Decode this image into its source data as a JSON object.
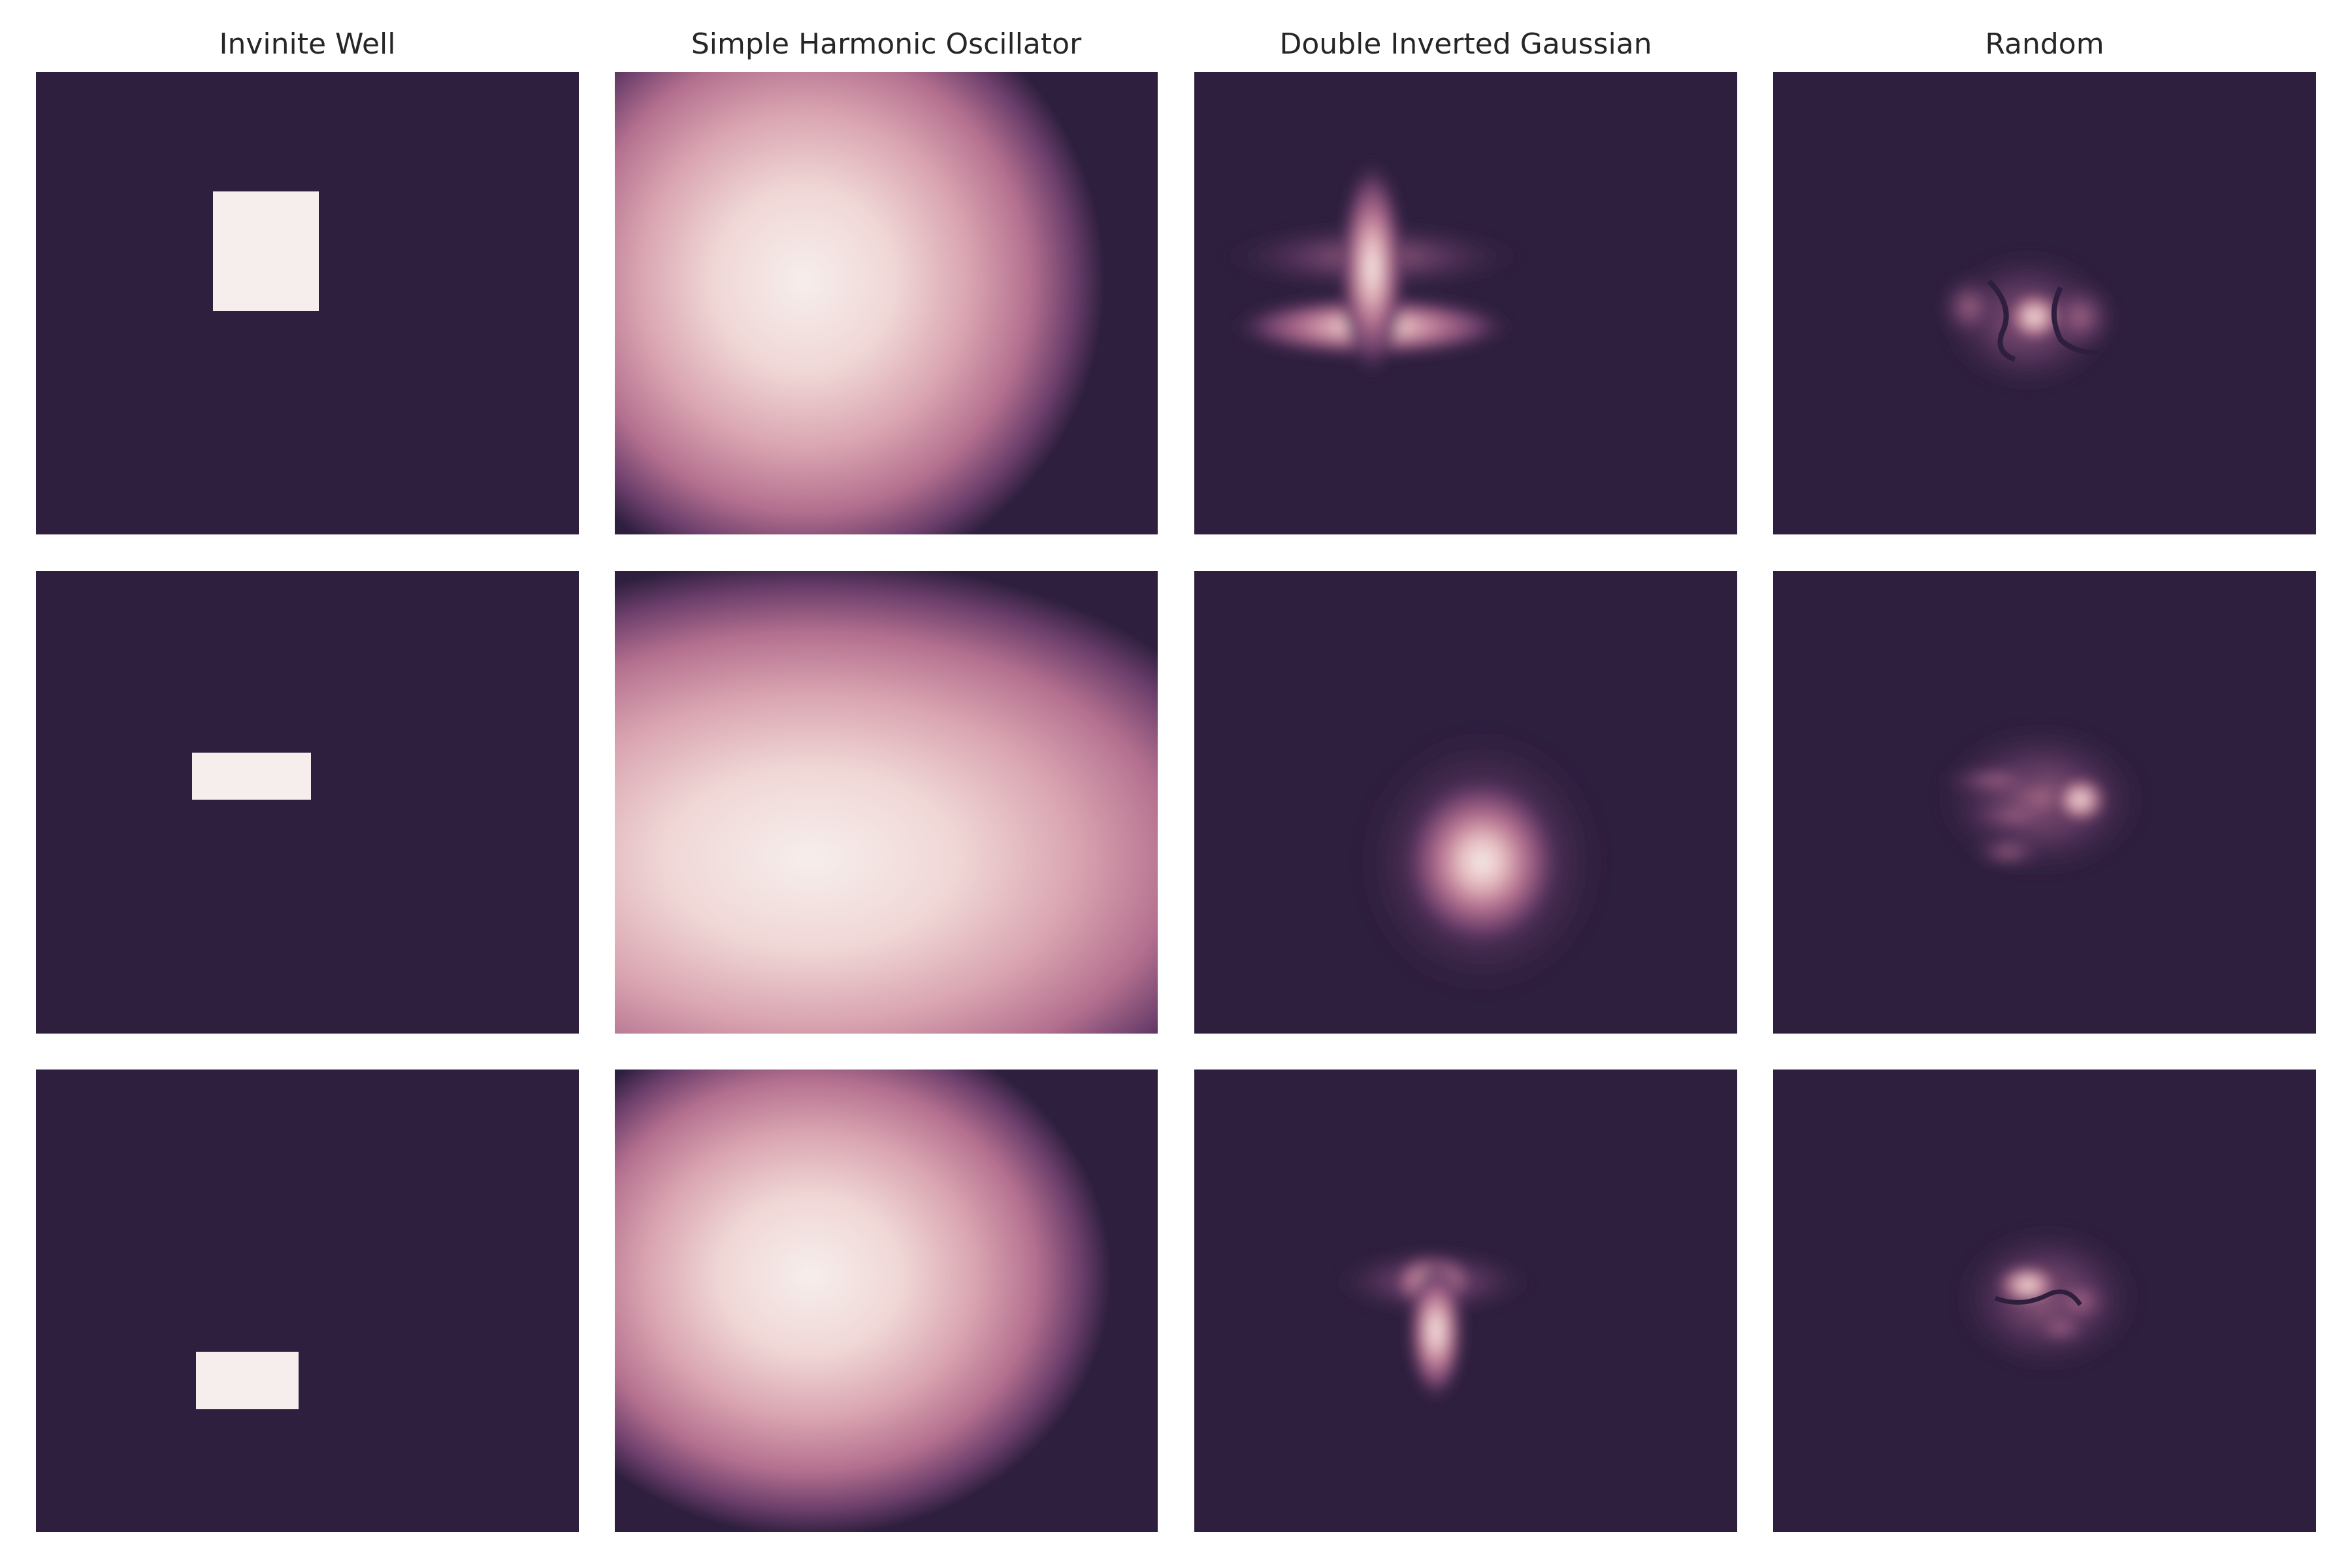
{
  "chart_data": {
    "type": "heatmap",
    "layout": "3 rows x 4 columns of 2D density images",
    "colormap": [
      "#2e1f3e",
      "#6b3e6b",
      "#a96385",
      "#d6a0ad",
      "#f6eeec"
    ],
    "columns": [
      {
        "title": "Invinite Well"
      },
      {
        "title": "Simple Harmonic Oscillator"
      },
      {
        "title": "Double Inverted Gaussian"
      },
      {
        "title": "Random"
      }
    ],
    "xlabel": "",
    "ylabel": "",
    "grid": false,
    "ticks": false
  }
}
